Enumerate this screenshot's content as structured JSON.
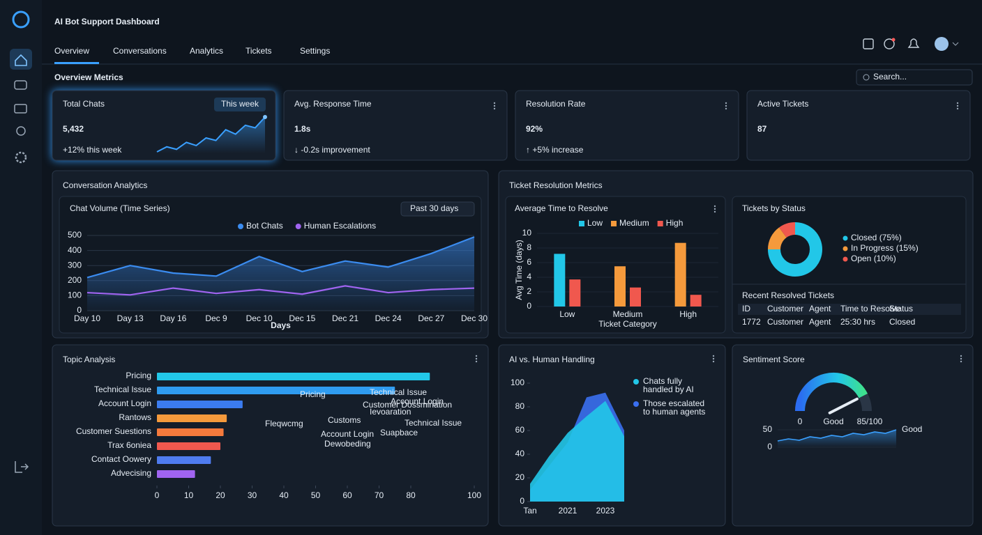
{
  "app": {
    "title": "AI Bot Support Dashboard"
  },
  "nav": {
    "tabs": [
      "Overview",
      "Conversations",
      "Analytics",
      "Tickets",
      "Settings"
    ],
    "active": 0
  },
  "search": "Search...",
  "section_title": "Overview Metrics",
  "kpis": [
    {
      "title": "Total Chats",
      "value": "5,432",
      "change": "+12% this week",
      "badge": "This week",
      "spark": [
        20,
        28,
        24,
        35,
        30,
        42,
        38,
        55,
        48,
        62,
        58,
        75
      ]
    },
    {
      "title": "Avg. Response Time",
      "value": "1.8s",
      "change": "↓ -0.2s improvement"
    },
    {
      "title": "Resolution Rate",
      "value": "92%",
      "change": "↑ +5% increase"
    },
    {
      "title": "Active Tickets",
      "value": "87"
    }
  ],
  "conversation": {
    "title": "Conversation Analytics",
    "chart": {
      "type": "area",
      "title": "Chat Volume (Time Series)",
      "range": "Past 30 days",
      "x_label": "Days",
      "categories": [
        "Day 10",
        "Day 13",
        "Day 16",
        "Dec 9",
        "Dec 10",
        "Dec 15",
        "Dec 21",
        "Dec 24",
        "Dec 27",
        "Dec 30"
      ],
      "ylim": [
        0,
        500
      ],
      "yticks": [
        0,
        100,
        200,
        300,
        400,
        500
      ],
      "series": [
        {
          "name": "Bot Chats",
          "color": "#3b8cf0",
          "values": [
            220,
            300,
            250,
            230,
            360,
            260,
            330,
            290,
            380,
            490
          ]
        },
        {
          "name": "Human Escalations",
          "color": "#a064f0",
          "values": [
            120,
            105,
            150,
            115,
            140,
            110,
            165,
            120,
            140,
            150
          ]
        }
      ]
    }
  },
  "tickets": {
    "title": "Ticket Resolution Metrics",
    "avg_time": {
      "type": "bar",
      "title": "Average Time to Resolve",
      "y_label": "Avg Time (days)",
      "x_label": "Ticket Category",
      "categories": [
        "Low",
        "Medium",
        "High"
      ],
      "ylim": [
        0,
        10
      ],
      "yticks": [
        0,
        2,
        4,
        6,
        8,
        10
      ],
      "series": [
        {
          "name": "Low",
          "color": "#22c7e8",
          "values": [
            7.2,
            null,
            null
          ]
        },
        {
          "name": "Medium",
          "color": "#f59a3c",
          "values": [
            null,
            5.5,
            8.7
          ]
        },
        {
          "name": "High",
          "color": "#f0584e",
          "values": [
            3.7,
            2.6,
            1.6
          ]
        }
      ]
    },
    "status": {
      "type": "pie",
      "title": "Tickets by Status",
      "labels": [
        "Closed (75%)",
        "In Progress (15%)",
        "Open (10%)"
      ],
      "values": [
        75,
        15,
        10
      ],
      "colors": [
        "#22c7e8",
        "#f59a3c",
        "#f0584e"
      ]
    },
    "recent": {
      "title": "Recent Resolved Tickets",
      "columns": [
        "ID",
        "Customer",
        "Agent",
        "Time to Resolve",
        "Status"
      ],
      "rows": [
        [
          "1772",
          "Customer",
          "Agent",
          "25:30 hrs",
          "Closed"
        ]
      ]
    }
  },
  "topics": {
    "type": "bar",
    "title": "Topic Analysis",
    "categories": [
      "Pricing",
      "Technical Issue",
      "Account Login",
      "Rantows",
      "Customer Suestions",
      "Trax 6oniea",
      "Contact Oowery",
      "Advecising"
    ],
    "values": [
      86,
      75,
      27,
      22,
      21,
      20,
      17,
      12
    ],
    "colors": [
      "#22c7e8",
      "#2f9cf0",
      "#3b7cf0",
      "#f59a3c",
      "#f57a3c",
      "#f0584e",
      "#4f7cf0",
      "#a064f0"
    ],
    "xlim": [
      0,
      100
    ],
    "xticks": [
      0,
      10,
      20,
      30,
      40,
      50,
      60,
      70,
      80,
      100
    ],
    "words": [
      "Pricing",
      "Technical Issue",
      "Customer Dossmination",
      "Account Login",
      "Ievoaration",
      "Customs",
      "Fleqwcmg",
      "Technical Issue",
      "Account Login",
      "Suapbace",
      "Dewobeding"
    ]
  },
  "ai_human": {
    "type": "area",
    "title": "AI vs. Human Handling",
    "categories": [
      "Tan",
      null,
      "2021",
      null,
      "2023",
      null
    ],
    "ylim": [
      0,
      100
    ],
    "yticks": [
      0,
      20,
      40,
      60,
      80,
      100
    ],
    "series": [
      {
        "name_lines": [
          "Chats fully",
          "handled by AI"
        ],
        "color": "#22c7e8",
        "values": [
          15,
          38,
          58,
          72,
          85,
          55
        ]
      },
      {
        "name_lines": [
          "Those escalated",
          "to human agents"
        ],
        "color": "#3a6ff0",
        "values": [
          10,
          30,
          50,
          88,
          92,
          60
        ]
      }
    ]
  },
  "sentiment": {
    "title": "Sentiment Score",
    "gauge": {
      "min": 0,
      "max": 100,
      "value": 85,
      "value_label": "85/100"
    },
    "rating": "Good",
    "trend": {
      "values": [
        18,
        24,
        20,
        30,
        26,
        34,
        30,
        40,
        36,
        44,
        40,
        50
      ],
      "ylim": [
        0,
        60
      ],
      "yticks": [
        0,
        50
      ],
      "label": "Good"
    }
  }
}
